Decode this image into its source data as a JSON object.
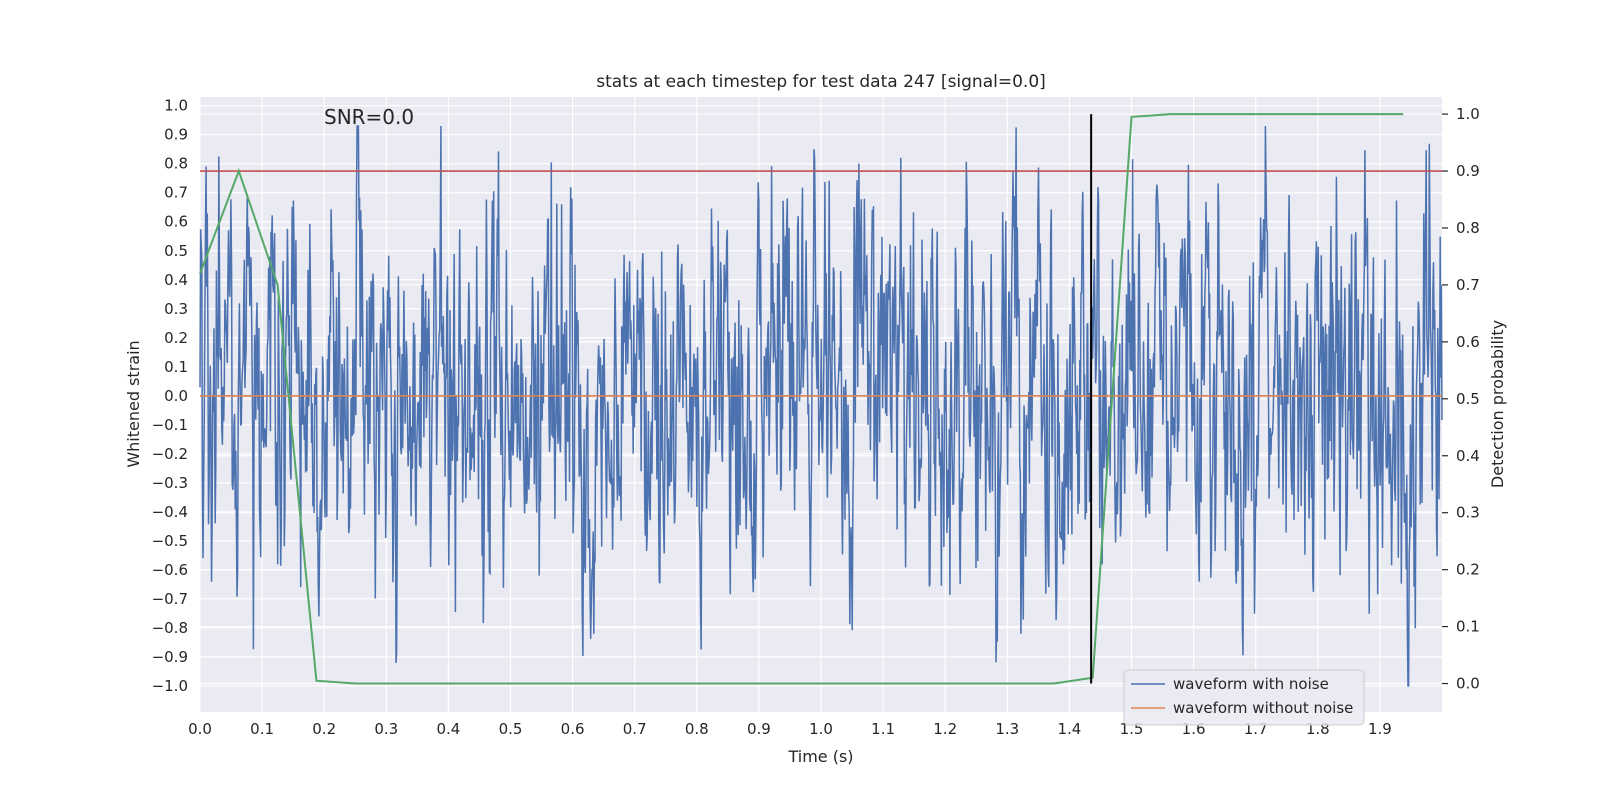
{
  "chart_data": {
    "type": "line",
    "title": "stats at each timestep for test data 247 [signal=0.0]",
    "xlabel": "Time (s)",
    "ylabel": "Whitened strain",
    "ylabel_right": "Detection probability",
    "xlim": [
      0.0,
      2.0
    ],
    "ylim": [
      -1.09,
      1.03
    ],
    "ylim_right": [
      -0.05,
      1.03
    ],
    "xticks": [
      0.0,
      0.1,
      0.2,
      0.3,
      0.4,
      0.5,
      0.6,
      0.7,
      0.8,
      0.9,
      1.0,
      1.1,
      1.2,
      1.3,
      1.4,
      1.5,
      1.6,
      1.7,
      1.8,
      1.9
    ],
    "xtick_labels": [
      "0.0",
      "0.1",
      "0.2",
      "0.3",
      "0.4",
      "0.5",
      "0.6",
      "0.7",
      "0.8",
      "0.9",
      "1.0",
      "1.1",
      "1.2",
      "1.3",
      "1.4",
      "1.5",
      "1.6",
      "1.7",
      "1.8",
      "1.9"
    ],
    "yticks": [
      1.0,
      0.9,
      0.8,
      0.7,
      0.6,
      0.5,
      0.4,
      0.3,
      0.2,
      0.1,
      0.0,
      -0.1,
      -0.2,
      -0.3,
      -0.4,
      -0.5,
      -0.6,
      -0.7,
      -0.8,
      -0.9,
      -1.0
    ],
    "ytick_labels": [
      "1.0",
      "0.9",
      "0.8",
      "0.7",
      "0.6",
      "0.5",
      "0.4",
      "0.3",
      "0.2",
      "0.1",
      "0.0",
      "−0.1",
      "−0.2",
      "−0.3",
      "−0.4",
      "−0.5",
      "−0.6",
      "−0.7",
      "−0.8",
      "−0.9",
      "−1.0"
    ],
    "yticks_right": [
      1.0,
      0.9,
      0.8,
      0.7,
      0.6,
      0.5,
      0.4,
      0.3,
      0.2,
      0.1,
      0.0
    ],
    "ytick_labels_right": [
      "1.0",
      "0.9",
      "0.8",
      "0.7",
      "0.6",
      "0.5",
      "0.4",
      "0.3",
      "0.2",
      "0.1",
      "0.0"
    ],
    "annotation": "SNR=0.0",
    "noise_series": {
      "name": "waveform with noise",
      "color": "#4c72b0",
      "n_samples": 2048,
      "amplitude_std": 0.33,
      "clip": [
        -1.0,
        0.93
      ],
      "seed": 247
    },
    "series": [
      {
        "name": "waveform without noise",
        "color": "#dd8452",
        "x": [
          0.0,
          2.0
        ],
        "y": [
          0.0,
          0.0
        ]
      },
      {
        "name": "detection probability",
        "axis": "right",
        "color": "#55a868",
        "x": [
          0.0,
          0.0625,
          0.125,
          0.1875,
          0.25,
          0.3125,
          0.375,
          0.4375,
          0.5,
          0.5625,
          0.625,
          0.6875,
          0.75,
          0.8125,
          0.875,
          0.9375,
          1.0,
          1.0625,
          1.125,
          1.1875,
          1.25,
          1.3125,
          1.375,
          1.4375,
          1.5,
          1.5625,
          1.625,
          1.6875,
          1.75,
          1.8125,
          1.875,
          1.9375
        ],
        "y": [
          0.72,
          0.9,
          0.7,
          0.005,
          0.0,
          0.0,
          0.0,
          0.0,
          0.0,
          0.0,
          0.0,
          0.0,
          0.0,
          0.0,
          0.0,
          0.0,
          0.0,
          0.0,
          0.0,
          0.0,
          0.0,
          0.0,
          0.0,
          0.01,
          0.995,
          1.0,
          1.0,
          1.0,
          1.0,
          1.0,
          1.0,
          1.0
        ]
      }
    ],
    "threshold": {
      "axis": "right",
      "value": 0.9,
      "color": "#c44e52"
    },
    "event_marker": {
      "x": 1.435,
      "y_range": [
        0.0,
        1.0
      ],
      "color": "#000000"
    },
    "legend": {
      "position": "lower-right",
      "entries": [
        {
          "label": "waveform with noise",
          "color": "#4c72b0"
        },
        {
          "label": "waveform without noise",
          "color": "#dd8452"
        }
      ]
    },
    "background": "#eaeaf2",
    "grid": true
  }
}
